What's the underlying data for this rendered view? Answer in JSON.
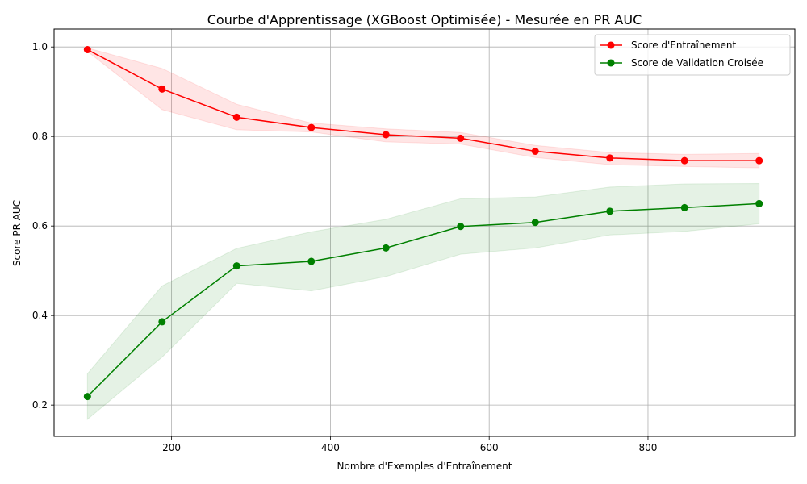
{
  "chart_data": {
    "type": "line",
    "title": "Courbe d'Apprentissage (XGBoost Optimisée) - Mesurée en PR AUC",
    "xlabel": "Nombre d'Exemples d'Entraînement",
    "ylabel": "Score PR AUC",
    "xlim": [
      52,
      985
    ],
    "ylim": [
      0.13,
      1.04
    ],
    "xticks": [
      200,
      400,
      600,
      800
    ],
    "yticks": [
      0.2,
      0.4,
      0.6,
      0.8,
      1.0
    ],
    "x_tick_labels": [
      "200",
      "400",
      "600",
      "800"
    ],
    "y_tick_labels": [
      "0.2",
      "0.4",
      "0.6",
      "0.8",
      "1.0"
    ],
    "grid": true,
    "legend_position": "top-right",
    "x": [
      94,
      188,
      282,
      376,
      470,
      564,
      658,
      752,
      846,
      940
    ],
    "series": [
      {
        "name": "Score d'Entraînement",
        "color": "#ff0000",
        "band_color": "#ff0000",
        "values": [
          0.994,
          0.906,
          0.843,
          0.82,
          0.804,
          0.796,
          0.767,
          0.752,
          0.746,
          0.746
        ],
        "band_lower": [
          0.99,
          0.86,
          0.815,
          0.81,
          0.788,
          0.783,
          0.753,
          0.737,
          0.733,
          0.73
        ],
        "band_upper": [
          0.998,
          0.952,
          0.872,
          0.83,
          0.817,
          0.809,
          0.78,
          0.764,
          0.76,
          0.762
        ]
      },
      {
        "name": "Score de Validation Croisée",
        "color": "#008000",
        "band_color": "#008000",
        "values": [
          0.219,
          0.386,
          0.511,
          0.521,
          0.551,
          0.599,
          0.608,
          0.633,
          0.641,
          0.65
        ],
        "band_lower": [
          0.168,
          0.307,
          0.472,
          0.455,
          0.487,
          0.537,
          0.551,
          0.58,
          0.588,
          0.605
        ],
        "band_upper": [
          0.27,
          0.466,
          0.55,
          0.587,
          0.615,
          0.661,
          0.665,
          0.687,
          0.694,
          0.695
        ]
      }
    ]
  }
}
